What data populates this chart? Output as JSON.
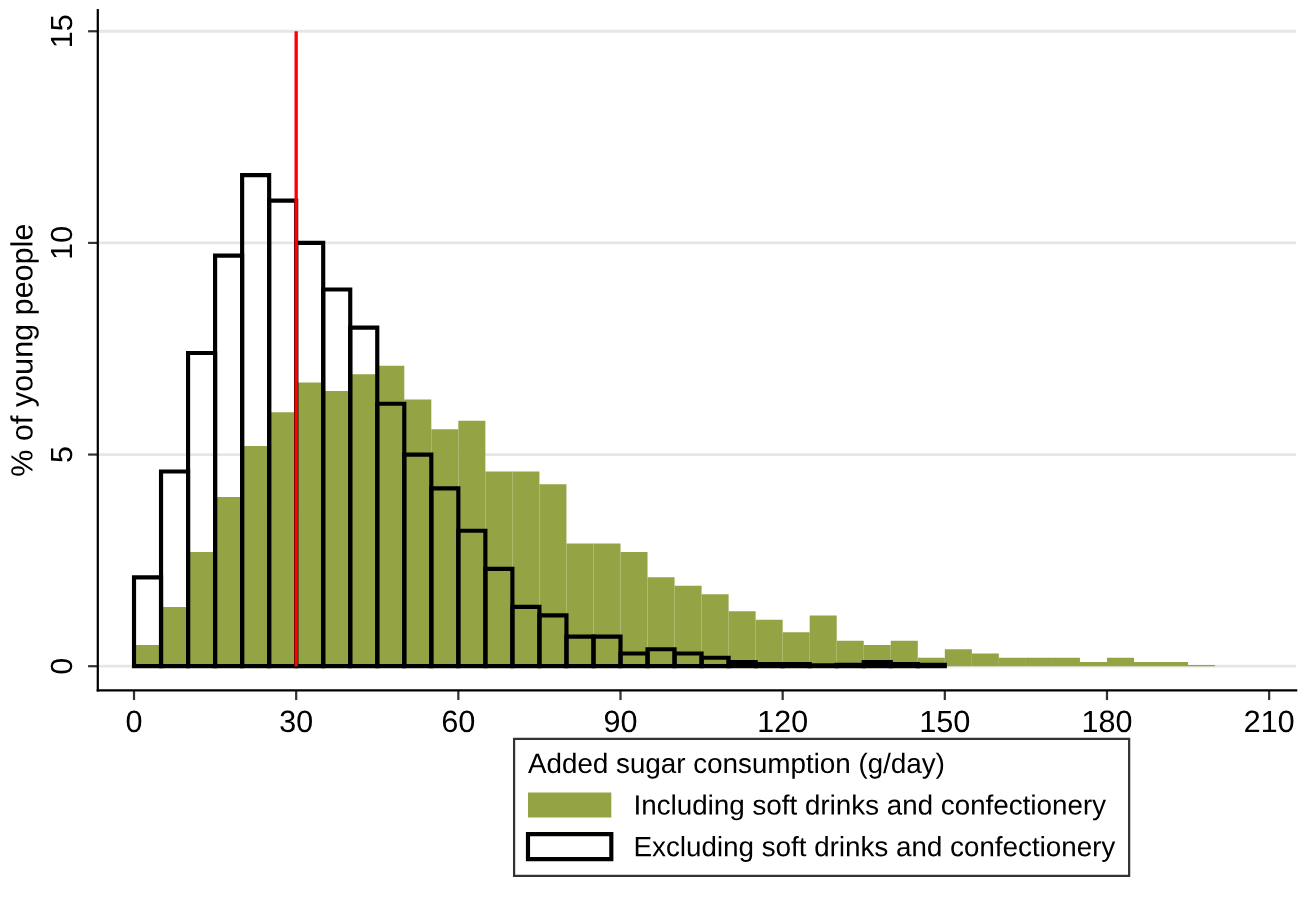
{
  "chart_data": {
    "type": "histogram",
    "xlabel": null,
    "ylabel": "% of young people",
    "legend_title": "Added sugar consumption (g/day)",
    "bins": [
      0,
      5,
      10,
      15,
      20,
      25,
      30,
      35,
      40,
      45,
      50,
      55,
      60,
      65,
      70,
      75,
      80,
      85,
      90,
      95,
      100,
      105,
      110,
      115,
      120,
      125,
      130,
      135,
      140,
      145,
      150,
      155,
      160,
      165,
      170,
      175,
      180,
      185,
      190,
      195,
      200
    ],
    "series": [
      {
        "name": "Including soft drinks and confectionery",
        "color": "#94a444",
        "values": [
          0.5,
          1.4,
          2.7,
          4.0,
          5.2,
          6.0,
          6.7,
          6.5,
          6.9,
          7.1,
          6.3,
          5.6,
          5.8,
          4.6,
          4.6,
          4.3,
          2.9,
          2.9,
          2.7,
          2.1,
          1.9,
          1.7,
          1.3,
          1.1,
          0.8,
          1.2,
          0.6,
          0.5,
          0.6,
          0.2,
          0.4,
          0.3,
          0.2,
          0.2,
          0.2,
          0.1,
          0.2,
          0.1,
          0.1,
          0.03
        ]
      },
      {
        "name": "Excluding soft drinks and confectionery",
        "color": "#000000",
        "values": [
          2.1,
          4.6,
          7.4,
          9.7,
          11.6,
          11.0,
          10.0,
          8.9,
          8.0,
          6.2,
          5.0,
          4.2,
          3.2,
          2.3,
          1.4,
          1.2,
          0.7,
          0.7,
          0.3,
          0.4,
          0.3,
          0.2,
          0.1,
          0.05,
          0.05,
          0.02,
          0.03,
          0.1,
          0.05,
          0.03,
          null,
          null,
          null,
          null,
          null,
          null,
          null,
          null,
          null,
          null
        ]
      }
    ],
    "xlim": [
      -6.7,
      215
    ],
    "xticks": [
      0,
      30,
      60,
      90,
      120,
      150,
      180,
      210
    ],
    "ylim": [
      -0.57,
      15.5
    ],
    "yticks": [
      0,
      5,
      10,
      15
    ],
    "ref_lines": [
      {
        "axis": "x",
        "value": 30,
        "label": null,
        "color": "#ff0000"
      }
    ],
    "grid": "y",
    "legend": "bottom"
  }
}
